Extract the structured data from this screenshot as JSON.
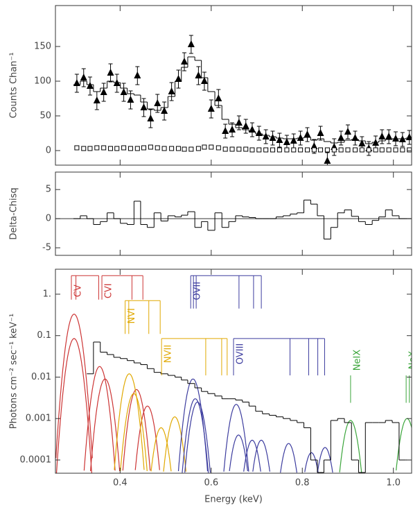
{
  "chart_data": [
    {
      "type": "scatter",
      "ylabel": "Counts Chan⁻¹",
      "xlim": [
        0.258,
        1.04
      ],
      "ylim": [
        -21,
        209
      ],
      "yticks": [
        0,
        50,
        100,
        150
      ],
      "color": "#000000",
      "x": [
        0.305,
        0.32,
        0.334,
        0.349,
        0.364,
        0.379,
        0.393,
        0.408,
        0.423,
        0.438,
        0.452,
        0.467,
        0.482,
        0.497,
        0.513,
        0.528,
        0.541,
        0.556,
        0.572,
        0.585,
        0.6,
        0.616,
        0.631,
        0.646,
        0.661,
        0.676,
        0.69,
        0.705,
        0.72,
        0.735,
        0.75,
        0.766,
        0.781,
        0.796,
        0.811,
        0.826,
        0.84,
        0.855,
        0.87,
        0.885,
        0.9,
        0.916,
        0.931,
        0.946,
        0.961,
        0.975,
        0.99,
        1.005,
        1.02,
        1.035
      ],
      "series": [
        {
          "marker": "triangle",
          "values": [
            97,
            105,
            93,
            72,
            84,
            112,
            97,
            84,
            73,
            108,
            62,
            46,
            68,
            57,
            85,
            103,
            128,
            153,
            108,
            100,
            60,
            75,
            28,
            30,
            40,
            35,
            30,
            25,
            20,
            18,
            15,
            12,
            14,
            18,
            23,
            6,
            25,
            -15,
            5,
            18,
            27,
            18,
            10,
            3,
            11,
            20,
            20,
            17,
            16,
            19
          ],
          "errors": [
            13,
            13,
            13,
            13,
            13,
            13,
            13,
            13,
            13,
            13,
            13,
            13,
            13,
            13,
            13,
            13,
            13,
            13,
            13,
            13,
            13,
            13,
            10,
            10,
            10,
            10,
            10,
            10,
            10,
            10,
            10,
            10,
            10,
            10,
            10,
            10,
            10,
            12,
            12,
            10,
            10,
            10,
            10,
            10,
            10,
            10,
            10,
            10,
            10,
            10
          ]
        },
        {
          "marker": "square",
          "values": [
            4,
            3,
            3,
            4,
            4,
            3,
            3,
            4,
            3,
            3,
            4,
            5,
            4,
            3,
            3,
            3,
            2,
            2,
            3,
            5,
            5,
            4,
            2,
            2,
            2,
            2,
            1,
            1,
            1,
            1,
            1,
            1,
            1,
            1,
            1,
            1,
            1,
            1,
            1,
            1,
            1,
            1,
            1,
            1,
            1,
            1,
            1,
            1,
            1,
            1
          ]
        }
      ],
      "model": [
        95,
        100,
        95,
        85,
        90,
        100,
        98,
        90,
        82,
        80,
        70,
        60,
        58,
        62,
        78,
        100,
        120,
        135,
        130,
        105,
        85,
        65,
        45,
        38,
        33,
        30,
        27,
        24,
        22,
        20,
        18,
        17,
        17,
        18,
        19,
        15,
        17,
        13,
        11,
        12,
        15,
        16,
        14,
        10,
        12,
        14,
        16,
        17,
        17,
        18
      ]
    },
    {
      "type": "step",
      "ylabel": "Delta-Chisq",
      "xlim": [
        0.258,
        1.04
      ],
      "ylim": [
        -6.3,
        8
      ],
      "yticks": [
        -5,
        0,
        5
      ],
      "color": "#000000",
      "x": [
        0.305,
        0.32,
        0.334,
        0.349,
        0.364,
        0.379,
        0.393,
        0.408,
        0.423,
        0.438,
        0.452,
        0.467,
        0.482,
        0.497,
        0.513,
        0.528,
        0.541,
        0.556,
        0.572,
        0.585,
        0.6,
        0.616,
        0.631,
        0.646,
        0.661,
        0.676,
        0.69,
        0.705,
        0.72,
        0.735,
        0.75,
        0.766,
        0.781,
        0.796,
        0.811,
        0.826,
        0.84,
        0.855,
        0.87,
        0.885,
        0.9,
        0.916,
        0.931,
        0.946,
        0.961,
        0.975,
        0.99,
        1.005,
        1.02,
        1.035
      ],
      "values": [
        0,
        0.5,
        0,
        -1,
        -0.5,
        1,
        0,
        -0.8,
        -1,
        3,
        -1,
        -1.5,
        1,
        -0.4,
        0.5,
        0.3,
        0.6,
        1.2,
        -1.5,
        -0.5,
        -2,
        1,
        -1.5,
        -0.5,
        0.5,
        0.3,
        0.2,
        0,
        0,
        0,
        0.3,
        0.5,
        0.8,
        1,
        3.2,
        2.5,
        0.5,
        -3.5,
        -1.5,
        1,
        1.5,
        0.4,
        -0.5,
        -1,
        -0.3,
        0.3,
        1.5,
        0.5,
        0,
        0
      ]
    },
    {
      "type": "line",
      "log": true,
      "ylabel": "Photons cm⁻² sec⁻¹ keV⁻¹",
      "xlabel": "Energy  (keV)",
      "xlim": [
        0.258,
        1.04
      ],
      "ylim": [
        4.8e-05,
        4
      ],
      "color": "#000000",
      "yticks": [
        {
          "value": 1,
          "label": "1."
        },
        0.1,
        0.01,
        0.001,
        0.0001
      ],
      "xticks": [
        0.4,
        0.6,
        0.8,
        {
          "value": 1.0,
          "label": "1.0"
        }
      ],
      "x": [
        0.305,
        0.32,
        0.334,
        0.349,
        0.364,
        0.379,
        0.393,
        0.408,
        0.423,
        0.438,
        0.452,
        0.467,
        0.482,
        0.497,
        0.513,
        0.528,
        0.541,
        0.556,
        0.572,
        0.585,
        0.6,
        0.616,
        0.631,
        0.646,
        0.661,
        0.676,
        0.69,
        0.705,
        0.72,
        0.735,
        0.75,
        0.766,
        0.781,
        0.796,
        0.811,
        0.826,
        0.84,
        0.855,
        0.87,
        0.885,
        0.9,
        0.916,
        0.931,
        0.946,
        0.961,
        0.975,
        0.99,
        1.005,
        1.02,
        1.035
      ],
      "values": [
        null,
        null,
        0.012,
        0.07,
        0.04,
        0.035,
        0.03,
        0.028,
        0.025,
        0.022,
        0.02,
        0.016,
        0.013,
        0.012,
        0.011,
        0.01,
        0.0085,
        0.007,
        0.0055,
        0.0045,
        0.004,
        0.0035,
        0.003,
        0.003,
        0.0028,
        0.0025,
        0.002,
        0.0015,
        0.0013,
        0.0012,
        0.0011,
        0.001,
        0.0009,
        0.0008,
        0.0006,
        0.0001,
        5e-05,
        0.0001,
        0.0009,
        0.001,
        0.0008,
        0.0001,
        5e-05,
        0.0008,
        0.0008,
        0.0008,
        0.0009,
        0.0008,
        0.0001,
        0.0001
      ],
      "line_ids": [
        {
          "label": "CV",
          "color": "#cc3333",
          "top": 2.8,
          "bottom": 0.74,
          "bracket": true,
          "energies": [
            0.293,
            0.303,
            0.353
          ]
        },
        {
          "label": "CVI",
          "color": "#cc3333",
          "top": 2.8,
          "bottom": 0.74,
          "bracket": true,
          "energies": [
            0.36,
            0.426,
            0.45
          ]
        },
        {
          "label": "NVI",
          "color": "#e0a800",
          "top": 0.7,
          "bottom": 0.11,
          "bracket": true,
          "energies": [
            0.411,
            0.419,
            0.463,
            0.488
          ]
        },
        {
          "label": "NVII",
          "color": "#e0a800",
          "top": 0.085,
          "bottom": 0.011,
          "bracket": true,
          "energies": [
            0.491,
            0.588,
            0.623,
            0.635
          ]
        },
        {
          "label": "OVII",
          "color": "#3b3b9e",
          "top": 2.8,
          "bottom": 0.45,
          "bracket": true,
          "energies": [
            0.555,
            0.561,
            0.567,
            0.661,
            0.693,
            0.71
          ]
        },
        {
          "label": "OVIII",
          "color": "#3b3b9e",
          "top": 0.085,
          "bottom": 0.011,
          "bracket": true,
          "energies": [
            0.649,
            0.773,
            0.814,
            0.834,
            0.849
          ]
        },
        {
          "label": "NeIX",
          "color": "#3aa53a",
          "top": 0.011,
          "bottom": 0.0024,
          "bracket": false,
          "energies": [
            0.906
          ]
        },
        {
          "label": "NeX",
          "color": "#3aa53a",
          "top": 0.011,
          "bottom": 0.0024,
          "bracket": false,
          "energies": [
            1.028,
            1.035
          ]
        }
      ],
      "sigma": 0.01,
      "components": [
        {
          "energy": 0.299,
          "peak": 0.33,
          "color": "#cc3333"
        },
        {
          "energy": 0.299,
          "peak": 0.085,
          "color": "#cc3333"
        },
        {
          "energy": 0.355,
          "peak": 0.018,
          "color": "#cc3333"
        },
        {
          "energy": 0.367,
          "peak": 0.009,
          "color": "#cc3333"
        },
        {
          "energy": 0.436,
          "peak": 0.005,
          "color": "#cc3333"
        },
        {
          "energy": 0.46,
          "peak": 0.002,
          "color": "#cc3333"
        },
        {
          "energy": 0.42,
          "peak": 0.012,
          "color": "#e0a800"
        },
        {
          "energy": 0.43,
          "peak": 0.004,
          "color": "#e0a800"
        },
        {
          "energy": 0.49,
          "peak": 0.0006,
          "color": "#e0a800"
        },
        {
          "energy": 0.52,
          "peak": 0.0011,
          "color": "#e0a800"
        },
        {
          "energy": 0.56,
          "peak": 0.009,
          "color": "#3b3b9e"
        },
        {
          "energy": 0.565,
          "peak": 0.003,
          "color": "#3b3b9e"
        },
        {
          "energy": 0.57,
          "peak": 0.0025,
          "color": "#3b3b9e"
        },
        {
          "energy": 0.655,
          "peak": 0.0022,
          "color": "#3b3b9e"
        },
        {
          "energy": 0.66,
          "peak": 0.0004,
          "color": "#3b3b9e"
        },
        {
          "energy": 0.69,
          "peak": 0.0003,
          "color": "#3b3b9e"
        },
        {
          "energy": 0.71,
          "peak": 0.0003,
          "color": "#3b3b9e"
        },
        {
          "energy": 0.77,
          "peak": 0.00025,
          "color": "#3b3b9e"
        },
        {
          "energy": 0.82,
          "peak": 0.00015,
          "color": "#3b3b9e"
        },
        {
          "energy": 0.85,
          "peak": 0.0002,
          "color": "#3b3b9e"
        },
        {
          "energy": 0.906,
          "peak": 0.0009,
          "color": "#3aa53a"
        },
        {
          "energy": 1.03,
          "peak": 0.001,
          "color": "#3aa53a"
        }
      ]
    }
  ]
}
